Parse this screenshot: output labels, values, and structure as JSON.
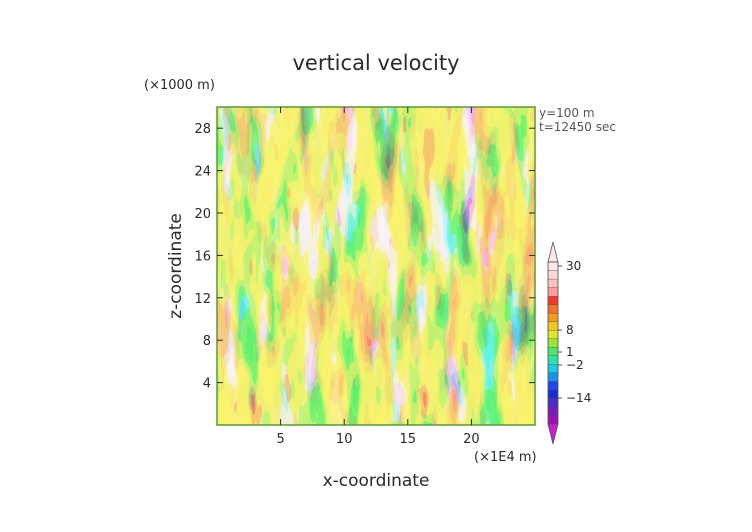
{
  "chart_data": {
    "type": "heatmap",
    "title": "vertical velocity",
    "xlabel": "x-coordinate",
    "ylabel": "z-coordinate",
    "x_unit": "(×1E4 m)",
    "y_unit": "(×1000 m)",
    "x_ticks": [
      5,
      10,
      15,
      20
    ],
    "y_ticks": [
      4,
      8,
      12,
      16,
      20,
      24,
      28
    ],
    "xlim": [
      0,
      25
    ],
    "ylim": [
      0,
      30
    ],
    "annotations": [
      "y=100 m",
      "t=12450 sec"
    ],
    "colorbar": {
      "labels": [
        "30",
        "8",
        "1",
        "−2",
        "−14"
      ],
      "label_values": [
        30,
        8,
        1,
        -2,
        -14
      ],
      "colors": [
        "#9a0fb0",
        "#7a1ab8",
        "#4a2ec4",
        "#1a2bd0",
        "#2244ee",
        "#1f8fe8",
        "#22c6e6",
        "#2fe0a8",
        "#53e36a",
        "#9ee33c",
        "#dfe72c",
        "#f4c626",
        "#f29b2a",
        "#f07230",
        "#ec3c2c",
        "#ff9e9e",
        "#ffc0c0",
        "#ffd8d8",
        "#ffe8e8"
      ]
    },
    "grid": false
  }
}
